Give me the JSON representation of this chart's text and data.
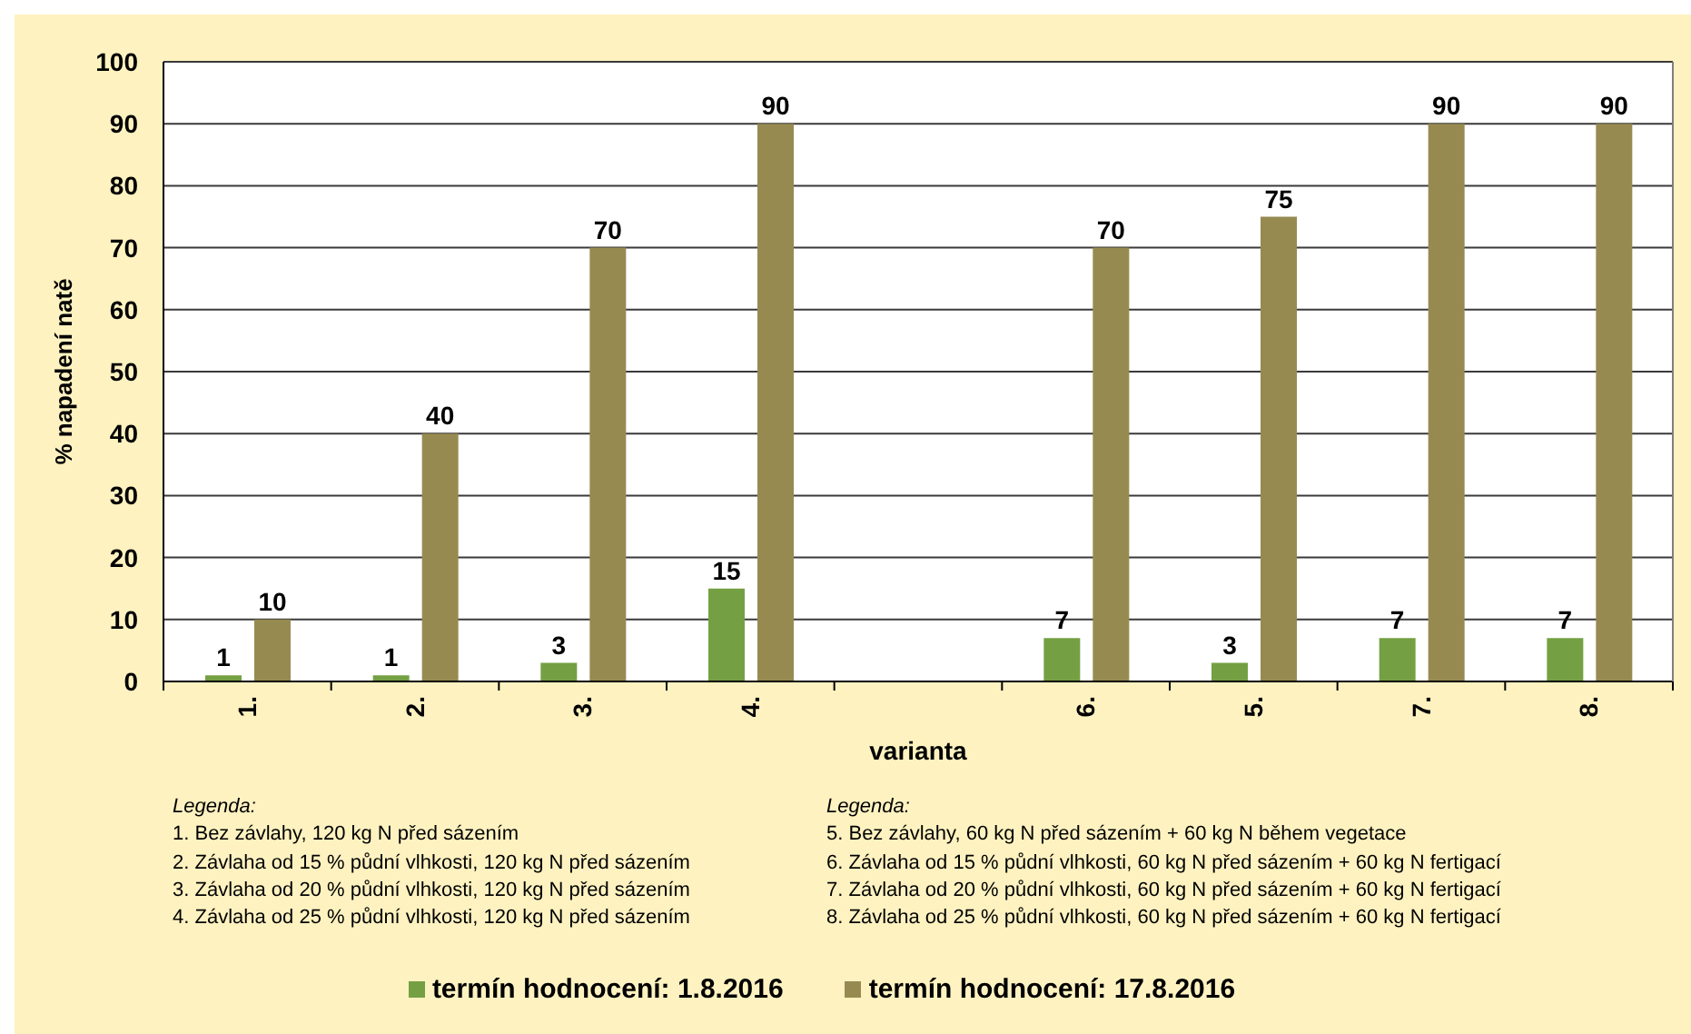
{
  "chart_data": {
    "type": "bar",
    "xlabel": "varianta",
    "ylabel": "% napadení natě",
    "categories": [
      "1.",
      "2.",
      "3.",
      "4.",
      null,
      "6.",
      "5.",
      "7.",
      "8."
    ],
    "series": [
      {
        "name": "termín hodnocení: 1.8.2016",
        "color": "#74a043",
        "values": [
          1,
          1,
          3,
          15,
          null,
          7,
          3,
          7,
          7
        ]
      },
      {
        "name": "termín hodnocení: 17.8.2016",
        "color": "#978a51",
        "values": [
          10,
          40,
          70,
          90,
          null,
          70,
          75,
          90,
          90
        ]
      }
    ],
    "ylim": [
      0,
      100
    ],
    "yticks": [
      0,
      10,
      20,
      30,
      40,
      50,
      60,
      70,
      80,
      90,
      100
    ],
    "grid": "y",
    "legend": "bottom",
    "data_labels": true,
    "annotations": [
      "Legenda:",
      "1. Bez závlahy, 120 kg N před sázením",
      "2. Závlaha od 15 % půdní vlhkosti, 120 kg N před sázením",
      "3. Závlaha od 20 % půdní vlhkosti, 120 kg N před sázením",
      "4. Závlaha od 25 % půdní vlhkosti, 120 kg N před sázením",
      "Legenda:",
      "5. Bez závlahy, 60 kg N před sázením + 60 kg N během vegetace",
      "6. Závlaha od 15 % půdní vlhkosti, 60 kg N před sázením + 60 kg N fertigací",
      "7. Závlaha od 20 % půdní vlhkosti, 60 kg N před sázením + 60 kg N fertigací",
      "8. Závlaha od 25 % půdní vlhkosti, 60 kg N před sázením + 60 kg N fertigací"
    ]
  }
}
